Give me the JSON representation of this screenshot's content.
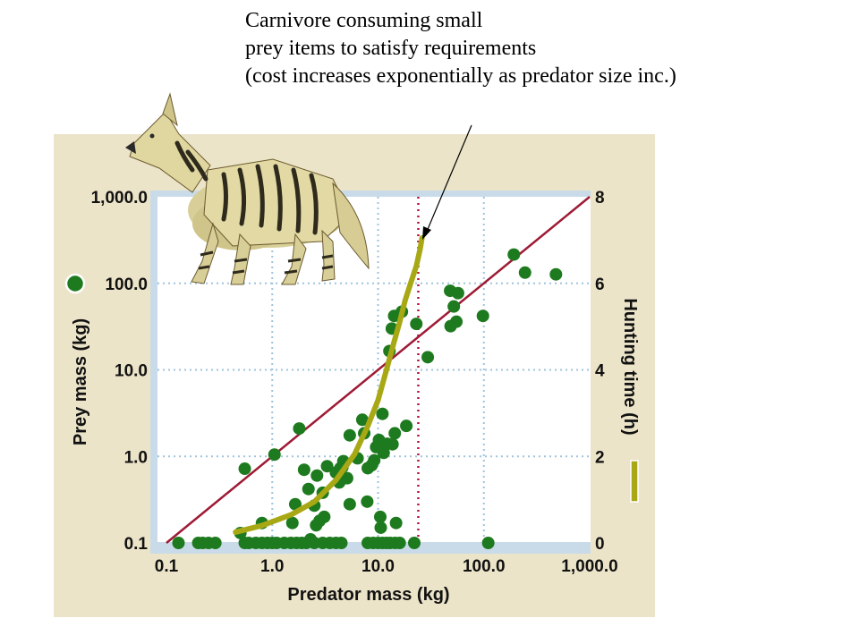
{
  "annotation": {
    "lines": [
      "Carnivore consuming small",
      "prey items to satisfy requirements",
      "(cost increases exponentially as predator size inc.)"
    ]
  },
  "illustration": {
    "icon": "hyena-illustration"
  },
  "chart_data": {
    "type": "scatter",
    "xlabel": "Predator mass (kg)",
    "ylabel": "Prey mass (kg)",
    "y2label": "Hunting time (h)",
    "xscale": "log",
    "yscale": "log",
    "xlim": [
      0.1,
      1000
    ],
    "ylim": [
      0.1,
      1000
    ],
    "y2lim": [
      0,
      8
    ],
    "x_ticks": [
      "0.1",
      "1.0",
      "10.0",
      "100.0",
      "1,000.0"
    ],
    "y_ticks": [
      "0.1",
      "1.0",
      "10.0",
      "100.0",
      "1,000.0"
    ],
    "y2_ticks": [
      "0",
      "2",
      "4",
      "6",
      "8"
    ],
    "grid": true,
    "colors": {
      "points": "#1e7a1e",
      "curve": "#a8a815",
      "line": "#9e1a34",
      "vline": "#b5123c",
      "panel": "#ece4c9",
      "plot": "#ffffff",
      "grid": "#9ec3db"
    },
    "series": [
      {
        "kind": "points",
        "points": [
          [
            0.13,
            0.1
          ],
          [
            0.2,
            0.1
          ],
          [
            0.22,
            0.1
          ],
          [
            0.25,
            0.1
          ],
          [
            0.29,
            0.1
          ],
          [
            0.55,
            0.1
          ],
          [
            0.6,
            0.1
          ],
          [
            0.7,
            0.1
          ],
          [
            0.8,
            0.1
          ],
          [
            0.9,
            0.1
          ],
          [
            1.0,
            0.1
          ],
          [
            1.1,
            0.1
          ],
          [
            1.3,
            0.1
          ],
          [
            1.5,
            0.1
          ],
          [
            1.7,
            0.1
          ],
          [
            1.9,
            0.1
          ],
          [
            2.1,
            0.1
          ],
          [
            2.5,
            0.1
          ],
          [
            3.0,
            0.1
          ],
          [
            3.5,
            0.1
          ],
          [
            4.0,
            0.1
          ],
          [
            4.5,
            0.1
          ],
          [
            8.0,
            0.1
          ],
          [
            9.0,
            0.1
          ],
          [
            10.0,
            0.1
          ],
          [
            11.0,
            0.1
          ],
          [
            12.0,
            0.1
          ],
          [
            13.0,
            0.1
          ],
          [
            14.5,
            0.1
          ],
          [
            16.0,
            0.1
          ],
          [
            22.0,
            0.1
          ],
          [
            110.0,
            0.1
          ],
          [
            0.55,
            0.72
          ],
          [
            1.05,
            1.05
          ],
          [
            0.5,
            0.13
          ],
          [
            0.8,
            0.17
          ],
          [
            1.55,
            0.17
          ],
          [
            1.65,
            0.28
          ],
          [
            1.8,
            2.1
          ],
          [
            2.0,
            0.7
          ],
          [
            2.2,
            0.42
          ],
          [
            2.3,
            0.11
          ],
          [
            2.5,
            0.27
          ],
          [
            2.6,
            0.16
          ],
          [
            2.65,
            0.6
          ],
          [
            2.8,
            0.18
          ],
          [
            3.0,
            0.38
          ],
          [
            3.1,
            0.2
          ],
          [
            3.3,
            0.77
          ],
          [
            4.0,
            0.65
          ],
          [
            4.3,
            0.5
          ],
          [
            4.4,
            0.73
          ],
          [
            4.6,
            0.75
          ],
          [
            4.7,
            0.88
          ],
          [
            5.1,
            0.56
          ],
          [
            5.4,
            0.28
          ],
          [
            5.4,
            1.75
          ],
          [
            6.4,
            0.95
          ],
          [
            7.1,
            2.65
          ],
          [
            7.4,
            1.85
          ],
          [
            7.9,
            0.3
          ],
          [
            8.0,
            0.73
          ],
          [
            8.7,
            0.79
          ],
          [
            9.2,
            0.9
          ],
          [
            9.6,
            1.28
          ],
          [
            10.2,
            1.55
          ],
          [
            10.4,
            1.47
          ],
          [
            10.5,
            0.2
          ],
          [
            10.6,
            0.15
          ],
          [
            11.0,
            3.1
          ],
          [
            11.3,
            1.1
          ],
          [
            12.2,
            1.4
          ],
          [
            13.7,
            1.38
          ],
          [
            14.4,
            1.85
          ],
          [
            14.8,
            0.17
          ],
          [
            18.5,
            2.25
          ],
          [
            12.8,
            16.5
          ],
          [
            13.5,
            30.0
          ],
          [
            14.2,
            42.0
          ],
          [
            16.8,
            47.0
          ],
          [
            23.0,
            34.0
          ],
          [
            29.5,
            14.0
          ],
          [
            48.0,
            82.0
          ],
          [
            48.5,
            32.0
          ],
          [
            52.0,
            54.0
          ],
          [
            55.0,
            36.0
          ],
          [
            57.0,
            77.0
          ],
          [
            98.0,
            42.0
          ],
          [
            192.0,
            215.0
          ],
          [
            245.0,
            133.0
          ],
          [
            480.0,
            127.0
          ]
        ]
      },
      {
        "kind": "reference_line",
        "x": [
          0.1,
          1000
        ],
        "y": [
          0.1,
          1000
        ]
      },
      {
        "kind": "vertical_line",
        "x": 24
      },
      {
        "kind": "curve",
        "axis": "right",
        "points": [
          [
            0.45,
            0.25
          ],
          [
            0.8,
            0.4
          ],
          [
            1.5,
            0.65
          ],
          [
            2.5,
            0.95
          ],
          [
            4.0,
            1.45
          ],
          [
            6.0,
            2.05
          ],
          [
            8.0,
            2.7
          ],
          [
            10.0,
            3.3
          ],
          [
            12.0,
            4.0
          ],
          [
            14.0,
            4.6
          ],
          [
            16.0,
            5.1
          ],
          [
            18.0,
            5.6
          ],
          [
            20.0,
            5.95
          ],
          [
            23.0,
            6.4
          ],
          [
            25.0,
            6.8
          ],
          [
            26.0,
            7.05
          ]
        ]
      }
    ]
  }
}
